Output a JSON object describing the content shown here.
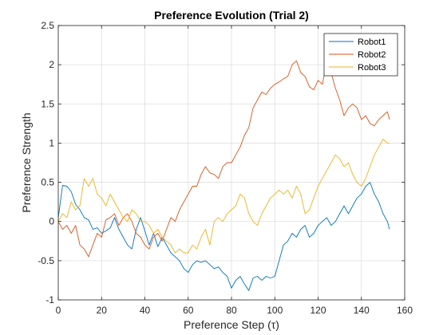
{
  "chart_data": {
    "type": "line",
    "title": "Preference Evolution (Trial 2)",
    "xlabel": "Preference Step (τ)",
    "ylabel": "Preference Strength",
    "xlim": [
      0,
      160
    ],
    "ylim": [
      -1,
      2.5
    ],
    "xticks": [
      0,
      20,
      40,
      60,
      80,
      100,
      120,
      140,
      160
    ],
    "yticks": [
      -1,
      -0.5,
      0,
      0.5,
      1,
      1.5,
      2,
      2.5
    ],
    "xtick_labels": [
      "0",
      "20",
      "40",
      "60",
      "80",
      "100",
      "120",
      "140",
      "160"
    ],
    "ytick_labels": [
      "-1",
      "-0.5",
      "0",
      "0.5",
      "1",
      "1.5",
      "2",
      "2.5"
    ],
    "grid": true,
    "legend_position": "top-right",
    "series": [
      {
        "name": "Robot1",
        "color": "#0072BD",
        "x": [
          0,
          2,
          4,
          6,
          8,
          10,
          12,
          14,
          16,
          18,
          20,
          22,
          24,
          26,
          28,
          30,
          32,
          34,
          36,
          38,
          40,
          42,
          44,
          46,
          48,
          50,
          52,
          54,
          56,
          58,
          60,
          62,
          64,
          66,
          68,
          70,
          72,
          74,
          76,
          78,
          80,
          82,
          84,
          86,
          88,
          90,
          92,
          94,
          96,
          98,
          100,
          102,
          104,
          106,
          108,
          110,
          112,
          114,
          116,
          118,
          120,
          122,
          124,
          126,
          128,
          130,
          132,
          134,
          136,
          138,
          140,
          142,
          144,
          146,
          148,
          150,
          152,
          153
        ],
        "y": [
          0.05,
          0.46,
          0.45,
          0.38,
          0.22,
          0.15,
          0.05,
          0.02,
          -0.1,
          -0.08,
          -0.15,
          -0.12,
          -0.08,
          0.05,
          -0.1,
          -0.2,
          -0.3,
          -0.35,
          -0.1,
          0.05,
          -0.12,
          -0.3,
          -0.15,
          -0.32,
          -0.2,
          -0.3,
          -0.4,
          -0.45,
          -0.5,
          -0.6,
          -0.65,
          -0.55,
          -0.5,
          -0.52,
          -0.5,
          -0.55,
          -0.6,
          -0.58,
          -0.65,
          -0.7,
          -0.85,
          -0.75,
          -0.7,
          -0.8,
          -0.88,
          -0.72,
          -0.7,
          -0.75,
          -0.7,
          -0.72,
          -0.7,
          -0.5,
          -0.3,
          -0.25,
          -0.15,
          -0.2,
          -0.1,
          -0.05,
          -0.2,
          -0.15,
          -0.05,
          0.0,
          0.05,
          -0.05,
          0.0,
          0.1,
          0.2,
          0.1,
          0.2,
          0.3,
          0.35,
          0.45,
          0.5,
          0.35,
          0.25,
          0.1,
          0.0,
          -0.1
        ]
      },
      {
        "name": "Robot2",
        "color": "#D95319",
        "x": [
          0,
          2,
          4,
          6,
          8,
          10,
          12,
          14,
          16,
          18,
          20,
          22,
          24,
          26,
          28,
          30,
          32,
          34,
          36,
          38,
          40,
          42,
          44,
          46,
          48,
          50,
          52,
          54,
          56,
          58,
          60,
          62,
          64,
          66,
          68,
          70,
          72,
          74,
          76,
          78,
          80,
          82,
          84,
          86,
          88,
          90,
          92,
          94,
          96,
          98,
          100,
          102,
          104,
          106,
          108,
          110,
          112,
          114,
          116,
          118,
          120,
          122,
          124,
          126,
          128,
          130,
          132,
          134,
          136,
          138,
          140,
          142,
          144,
          146,
          148,
          150,
          152,
          153
        ],
        "y": [
          0.0,
          -0.1,
          -0.05,
          -0.15,
          -0.05,
          -0.3,
          -0.35,
          -0.45,
          -0.3,
          -0.15,
          -0.2,
          0.02,
          0.05,
          0.1,
          -0.05,
          0.05,
          0.1,
          0.0,
          -0.15,
          -0.2,
          -0.3,
          -0.35,
          -0.2,
          -0.15,
          -0.25,
          -0.1,
          0.05,
          0.0,
          0.15,
          0.25,
          0.35,
          0.45,
          0.45,
          0.6,
          0.7,
          0.62,
          0.6,
          0.55,
          0.7,
          0.75,
          0.75,
          0.85,
          0.95,
          1.1,
          1.2,
          1.45,
          1.55,
          1.65,
          1.62,
          1.7,
          1.75,
          1.78,
          1.82,
          1.85,
          2.0,
          2.05,
          1.9,
          1.85,
          1.72,
          1.68,
          1.8,
          1.75,
          2.05,
          1.9,
          1.7,
          1.55,
          1.35,
          1.45,
          1.5,
          1.45,
          1.3,
          1.35,
          1.25,
          1.22,
          1.3,
          1.35,
          1.4,
          1.3
        ]
      },
      {
        "name": "Robot3",
        "color": "#EDB120",
        "x": [
          0,
          2,
          4,
          6,
          8,
          10,
          12,
          14,
          16,
          18,
          20,
          22,
          24,
          26,
          28,
          30,
          32,
          34,
          36,
          38,
          40,
          42,
          44,
          46,
          48,
          50,
          52,
          54,
          56,
          58,
          60,
          62,
          64,
          66,
          68,
          70,
          72,
          74,
          76,
          78,
          80,
          82,
          84,
          86,
          88,
          90,
          92,
          94,
          96,
          98,
          100,
          102,
          104,
          106,
          108,
          110,
          112,
          114,
          116,
          118,
          120,
          122,
          124,
          126,
          128,
          130,
          132,
          134,
          136,
          138,
          140,
          142,
          144,
          146,
          148,
          150,
          152,
          153
        ],
        "y": [
          0.0,
          0.1,
          0.05,
          0.25,
          0.15,
          0.2,
          0.55,
          0.45,
          0.55,
          0.35,
          0.3,
          0.2,
          0.35,
          0.25,
          0.15,
          0.05,
          0.0,
          0.15,
          0.1,
          0.0,
          0.0,
          -0.05,
          -0.15,
          -0.1,
          -0.2,
          -0.25,
          -0.3,
          -0.4,
          -0.35,
          -0.4,
          -0.4,
          -0.3,
          -0.35,
          -0.2,
          -0.1,
          -0.3,
          0.0,
          0.05,
          0.0,
          0.1,
          0.15,
          0.2,
          0.35,
          0.3,
          0.1,
          0.0,
          -0.05,
          0.1,
          0.2,
          0.3,
          0.35,
          0.4,
          0.35,
          0.4,
          0.3,
          0.45,
          0.35,
          0.1,
          0.15,
          0.3,
          0.45,
          0.55,
          0.65,
          0.75,
          0.85,
          0.8,
          0.7,
          0.75,
          0.6,
          0.5,
          0.45,
          0.55,
          0.7,
          0.85,
          0.95,
          1.05,
          1.0,
          1.0
        ]
      }
    ]
  }
}
